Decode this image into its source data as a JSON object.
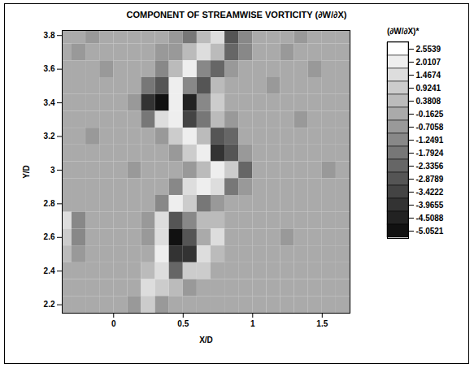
{
  "chart_data": {
    "type": "heatmap",
    "title": "COMPONENT OF STREAMWISE VORTICITY (∂W/∂X)",
    "x_label": "X/D",
    "y_label": "Y/D",
    "xlim": [
      -0.37,
      1.7
    ],
    "ylim": [
      2.15,
      3.83
    ],
    "xticks": [
      0,
      0.5,
      1,
      1.5
    ],
    "yticks": [
      2.2,
      2.4,
      2.6,
      2.8,
      3,
      3.2,
      3.4,
      3.6,
      3.8
    ],
    "x": [
      -0.35,
      -0.25,
      -0.15,
      -0.05,
      0.05,
      0.15,
      0.25,
      0.35,
      0.45,
      0.55,
      0.65,
      0.75,
      0.85,
      0.95,
      1.05,
      1.15,
      1.25,
      1.35,
      1.45,
      1.55,
      1.65
    ],
    "y": [
      3.8,
      3.7,
      3.6,
      3.5,
      3.4,
      3.3,
      3.2,
      3.1,
      3.0,
      2.9,
      2.8,
      2.7,
      2.6,
      2.5,
      2.4,
      2.3,
      2.2
    ],
    "values": [
      [
        0.1,
        0.1,
        -0.3,
        0.1,
        0.1,
        0.1,
        0.1,
        0.1,
        -0.4,
        -1.5,
        0.9,
        1.8,
        -2.5,
        -1.0,
        0.1,
        0.1,
        0.1,
        -0.3,
        0.1,
        0.1,
        0.1
      ],
      [
        0.1,
        -0.3,
        0.1,
        0.1,
        0.1,
        0.1,
        0.1,
        -0.2,
        -0.6,
        0.4,
        2.0,
        0.6,
        -2.3,
        -0.8,
        0.1,
        0.1,
        -0.2,
        0.1,
        0.1,
        0.1,
        0.1
      ],
      [
        0.1,
        0.1,
        0.1,
        -0.3,
        0.1,
        0.1,
        0.1,
        -0.8,
        0.8,
        2.2,
        -1.0,
        -1.8,
        -0.6,
        0.1,
        0.1,
        0.1,
        0.1,
        0.1,
        -0.3,
        0.1,
        0.1
      ],
      [
        0.1,
        0.1,
        0.1,
        0.1,
        0.1,
        0.1,
        -1.5,
        -2.8,
        2.3,
        -1.2,
        -2.5,
        0.9,
        0.1,
        0.1,
        0.1,
        -0.3,
        0.1,
        0.1,
        0.1,
        0.1,
        0.1
      ],
      [
        0.1,
        0.1,
        0.1,
        0.1,
        0.1,
        -0.3,
        -3.5,
        -4.8,
        2.4,
        -4.2,
        -1.0,
        1.2,
        0.1,
        0.1,
        0.1,
        0.1,
        0.1,
        0.1,
        0.1,
        0.1,
        0.1
      ],
      [
        0.1,
        0.1,
        0.1,
        0.1,
        0.1,
        0.1,
        -1.6,
        2.0,
        2.5,
        -3.2,
        -1.5,
        0.6,
        -0.4,
        0.1,
        0.1,
        0.1,
        0.1,
        -0.3,
        0.1,
        0.1,
        0.1
      ],
      [
        0.1,
        0.1,
        -0.3,
        0.1,
        0.1,
        0.1,
        0.1,
        -0.6,
        1.2,
        2.4,
        0.8,
        -2.5,
        -1.8,
        0.1,
        0.1,
        0.1,
        0.1,
        0.1,
        0.1,
        0.1,
        0.1
      ],
      [
        0.1,
        0.1,
        0.1,
        0.1,
        0.1,
        0.1,
        0.1,
        0.1,
        -0.6,
        1.0,
        2.4,
        -3.5,
        -2.8,
        -0.5,
        0.1,
        0.1,
        0.1,
        0.1,
        0.1,
        0.1,
        0.1
      ],
      [
        0.1,
        0.1,
        0.1,
        0.1,
        0.1,
        -0.3,
        0.1,
        0.1,
        0.1,
        -0.5,
        0.9,
        2.2,
        1.0,
        -2.2,
        0.1,
        0.1,
        0.1,
        0.1,
        0.1,
        -0.3,
        0.1
      ],
      [
        0.1,
        0.1,
        0.1,
        0.1,
        0.1,
        0.1,
        0.1,
        0.1,
        -1.0,
        1.6,
        2.3,
        1.5,
        -1.4,
        -0.3,
        0.1,
        0.1,
        0.1,
        0.1,
        0.1,
        0.1,
        0.1
      ],
      [
        0.1,
        0.1,
        0.1,
        0.1,
        0.1,
        0.1,
        0.1,
        -0.8,
        2.3,
        1.2,
        -1.5,
        -0.6,
        0.1,
        0.1,
        0.1,
        0.1,
        0.1,
        0.1,
        0.1,
        0.1,
        0.1
      ],
      [
        1.5,
        -1.2,
        0.1,
        0.1,
        0.1,
        0.1,
        -0.6,
        1.8,
        -2.6,
        -1.0,
        0.4,
        0.9,
        0.1,
        0.1,
        0.1,
        0.1,
        0.1,
        0.1,
        0.1,
        0.1,
        0.1
      ],
      [
        1.2,
        -0.8,
        0.1,
        0.1,
        0.1,
        0.1,
        -0.4,
        2.0,
        -4.6,
        -2.8,
        0.3,
        2.0,
        0.1,
        0.1,
        0.1,
        0.1,
        -0.3,
        0.1,
        0.1,
        0.1,
        0.1
      ],
      [
        0.8,
        -0.5,
        0.1,
        0.1,
        0.1,
        0.1,
        0.3,
        2.2,
        -3.8,
        -3.8,
        1.8,
        0.6,
        0.1,
        0.1,
        0.1,
        0.1,
        0.1,
        0.1,
        0.1,
        0.1,
        0.1
      ],
      [
        0.1,
        0.1,
        0.1,
        0.1,
        0.1,
        0.1,
        0.9,
        1.9,
        -2.0,
        1.4,
        1.2,
        0.1,
        0.1,
        0.1,
        0.1,
        0.1,
        0.1,
        0.1,
        0.1,
        0.1,
        0.1
      ],
      [
        0.1,
        0.1,
        0.1,
        0.1,
        0.1,
        0.1,
        1.6,
        1.2,
        0.8,
        -0.6,
        0.1,
        0.1,
        0.1,
        0.1,
        0.1,
        0.1,
        0.1,
        0.1,
        0.1,
        0.1,
        0.1
      ],
      [
        0.1,
        0.1,
        0.1,
        0.1,
        0.1,
        -0.3,
        1.4,
        -0.4,
        0.1,
        0.1,
        0.1,
        0.1,
        0.1,
        0.1,
        0.1,
        0.1,
        0.1,
        0.1,
        0.1,
        0.1,
        0.1
      ]
    ],
    "colorbar_label": "(∂W/∂X)*",
    "colorbar_lim": [
      -5.0521,
      2.5539
    ],
    "colorbar_ticks": [
      2.5539,
      2.0107,
      1.4674,
      0.9241,
      0.3808,
      -0.1625,
      -0.7058,
      -1.2491,
      -1.7924,
      -2.3356,
      -2.8789,
      -3.4222,
      -3.9655,
      -4.5088,
      -5.0521
    ]
  }
}
